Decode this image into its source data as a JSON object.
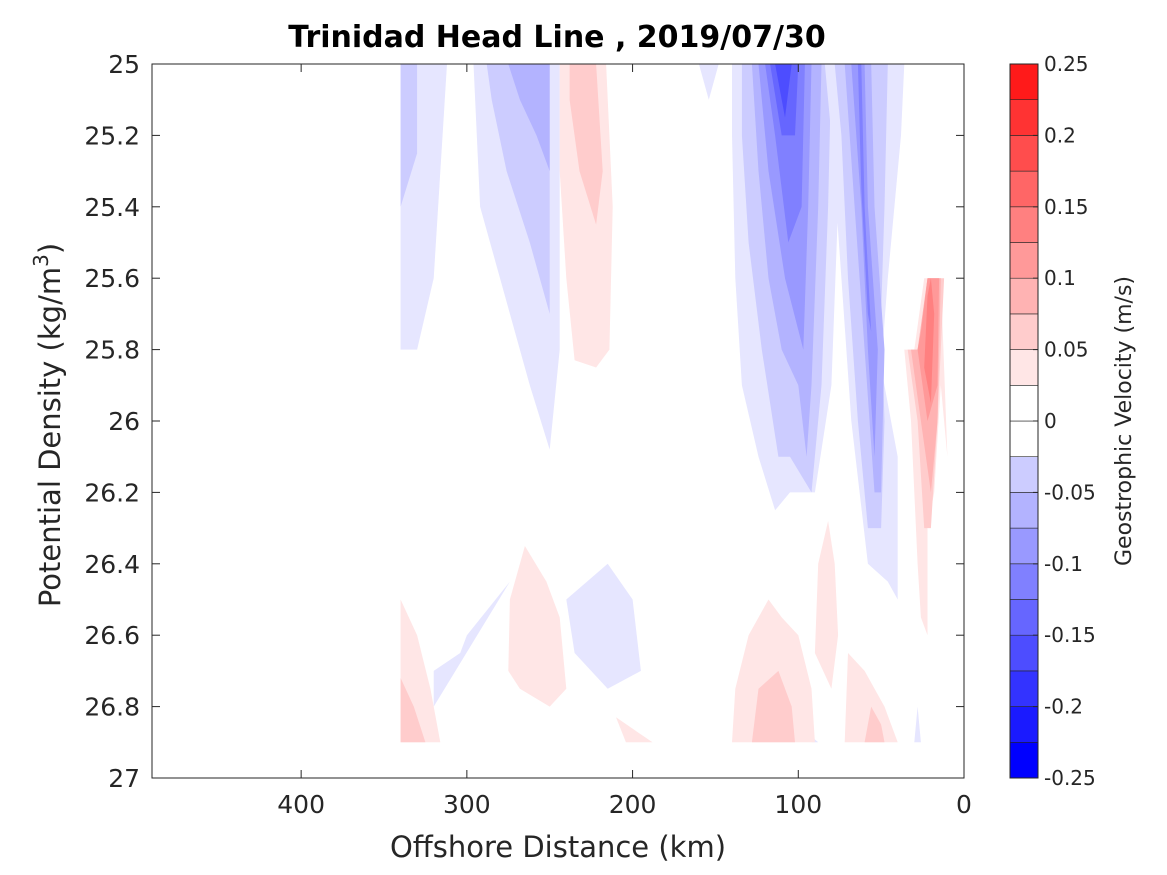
{
  "chart_data": {
    "type": "contour",
    "title": "Trinidad Head Line , 2019/07/30",
    "xlabel": "Offshore Distance (km)",
    "ylabel": "Potential Density (kg/m",
    "ylabel_sup": "3",
    "ylabel_close": ")",
    "colorbar_label": "Geostrophic Velocity (m/s)",
    "xlim": [
      490,
      0
    ],
    "ylim": [
      25,
      27
    ],
    "x_ticks": [
      400,
      300,
      200,
      100,
      0
    ],
    "x_tick_labels": [
      "400",
      "300",
      "200",
      "100",
      "0"
    ],
    "y_ticks": [
      25,
      25.2,
      25.4,
      25.6,
      25.8,
      26,
      26.2,
      26.4,
      26.6,
      26.8,
      27
    ],
    "y_tick_labels": [
      "25",
      "25.2",
      "25.4",
      "25.6",
      "25.8",
      "26",
      "26.2",
      "26.4",
      "26.6",
      "26.8",
      "27"
    ],
    "colorbar_range": [
      -0.25,
      0.25
    ],
    "colorbar_ticks": [
      0.25,
      0.2,
      0.15,
      0.1,
      0.05,
      0,
      -0.05,
      -0.1,
      -0.15,
      -0.2,
      -0.25
    ],
    "colorbar_tick_labels": [
      "0.25",
      "0.2",
      "0.15",
      "0.1",
      "0.05",
      "0",
      "-0.05",
      "-0.1",
      "-0.15",
      "-0.2",
      "-0.25"
    ],
    "levels": [
      -0.25,
      -0.225,
      -0.2,
      -0.175,
      -0.15,
      -0.125,
      -0.1,
      -0.075,
      -0.05,
      -0.025,
      0,
      0.025,
      0.05,
      0.075,
      0.1,
      0.125,
      0.15,
      0.175,
      0.2,
      0.225,
      0.25
    ],
    "level_colors": [
      "#0000ff",
      "#1a1aff",
      "#3333ff",
      "#4d4dff",
      "#6666ff",
      "#8080ff",
      "#9999ff",
      "#b3b3ff",
      "#ccccff",
      "#e6e6ff",
      "#ffffff",
      "#ffffff",
      "#ffe6e6",
      "#ffcccc",
      "#ffb3b3",
      "#ff9999",
      "#ff8080",
      "#ff6666",
      "#ff4d4d",
      "#ff3333",
      "#ff1a1a",
      "#ff0000"
    ],
    "regions": [
      {
        "v": -0.025,
        "pts": [
          [
            340,
            25
          ],
          [
            312,
            25
          ],
          [
            320,
            25.6
          ],
          [
            330,
            25.8
          ],
          [
            340,
            25.8
          ]
        ]
      },
      {
        "v": -0.05,
        "pts": [
          [
            340,
            25
          ],
          [
            330,
            25
          ],
          [
            330,
            25.25
          ],
          [
            340,
            25.4
          ]
        ]
      },
      {
        "v": -0.025,
        "pts": [
          [
            296,
            25
          ],
          [
            244,
            25
          ],
          [
            244,
            25.8
          ],
          [
            250,
            26.08
          ],
          [
            262,
            25.9
          ],
          [
            280,
            25.6
          ],
          [
            292,
            25.4
          ]
        ]
      },
      {
        "v": -0.05,
        "pts": [
          [
            288,
            25
          ],
          [
            250,
            25
          ],
          [
            250,
            25.7
          ],
          [
            262,
            25.5
          ],
          [
            276,
            25.3
          ],
          [
            285,
            25.1
          ]
        ]
      },
      {
        "v": -0.075,
        "pts": [
          [
            275,
            25
          ],
          [
            250,
            25
          ],
          [
            250,
            25.3
          ],
          [
            258,
            25.2
          ],
          [
            268,
            25.1
          ]
        ]
      },
      {
        "v": -0.025,
        "pts": [
          [
            160,
            25
          ],
          [
            148,
            25
          ],
          [
            154,
            25.1
          ]
        ]
      },
      {
        "v": -0.025,
        "pts": [
          [
            140,
            25
          ],
          [
            74,
            25
          ],
          [
            76,
            25.4
          ],
          [
            80,
            25.9
          ],
          [
            90,
            26.2
          ],
          [
            105,
            26.2
          ],
          [
            114,
            26.25
          ],
          [
            124,
            26.1
          ],
          [
            134,
            25.9
          ],
          [
            138,
            25.6
          ],
          [
            140,
            25.2
          ]
        ]
      },
      {
        "v": -0.05,
        "pts": [
          [
            134,
            25
          ],
          [
            80,
            25
          ],
          [
            82,
            25.4
          ],
          [
            86,
            25.9
          ],
          [
            92,
            26.2
          ],
          [
            105,
            26.1
          ],
          [
            112,
            26.1
          ],
          [
            122,
            25.8
          ],
          [
            130,
            25.5
          ],
          [
            134,
            25.2
          ]
        ]
      },
      {
        "v": -0.075,
        "pts": [
          [
            128,
            25
          ],
          [
            86,
            25
          ],
          [
            88,
            25.4
          ],
          [
            92,
            25.9
          ],
          [
            95,
            26.1
          ],
          [
            100,
            25.9
          ],
          [
            110,
            25.8
          ],
          [
            118,
            25.6
          ],
          [
            124,
            25.3
          ]
        ]
      },
      {
        "v": -0.1,
        "pts": [
          [
            124,
            25
          ],
          [
            92,
            25
          ],
          [
            94,
            25.4
          ],
          [
            97,
            25.8
          ],
          [
            108,
            25.6
          ],
          [
            118,
            25.3
          ]
        ]
      },
      {
        "v": -0.125,
        "pts": [
          [
            120,
            25
          ],
          [
            96,
            25
          ],
          [
            98,
            25.4
          ],
          [
            106,
            25.5
          ],
          [
            114,
            25.2
          ]
        ]
      },
      {
        "v": -0.15,
        "pts": [
          [
            117,
            25
          ],
          [
            100,
            25
          ],
          [
            102,
            25.2
          ],
          [
            110,
            25.2
          ]
        ]
      },
      {
        "v": -0.175,
        "pts": [
          [
            114,
            25
          ],
          [
            104,
            25
          ],
          [
            108,
            25.15
          ]
        ]
      },
      {
        "v": -0.025,
        "pts": [
          [
            84,
            25
          ],
          [
            36,
            25
          ],
          [
            38,
            25.2
          ],
          [
            46,
            25.6
          ],
          [
            50,
            25.85
          ],
          [
            40,
            26.1
          ],
          [
            40,
            26.5
          ],
          [
            46,
            26.45
          ],
          [
            58,
            26.4
          ],
          [
            68,
            26.0
          ],
          [
            74,
            25.6
          ],
          [
            80,
            25.2
          ]
        ]
      },
      {
        "v": -0.05,
        "pts": [
          [
            78,
            25
          ],
          [
            46,
            25
          ],
          [
            48,
            25.4
          ],
          [
            50,
            25.7
          ],
          [
            48,
            26.0
          ],
          [
            50,
            26.3
          ],
          [
            58,
            26.3
          ],
          [
            64,
            26.0
          ],
          [
            70,
            25.6
          ],
          [
            74,
            25.2
          ]
        ]
      },
      {
        "v": -0.075,
        "pts": [
          [
            72,
            25
          ],
          [
            56,
            25
          ],
          [
            54,
            25.4
          ],
          [
            48,
            25.8
          ],
          [
            50,
            26.2
          ],
          [
            54,
            26.2
          ],
          [
            60,
            25.8
          ],
          [
            66,
            25.4
          ]
        ]
      },
      {
        "v": -0.1,
        "pts": [
          [
            68,
            25
          ],
          [
            60,
            25
          ],
          [
            58,
            25.4
          ],
          [
            52,
            25.8
          ],
          [
            54,
            26.1
          ],
          [
            58,
            25.8
          ],
          [
            62,
            25.4
          ]
        ]
      },
      {
        "v": -0.125,
        "pts": [
          [
            64,
            25
          ],
          [
            62,
            25
          ],
          [
            60,
            25.4
          ],
          [
            56,
            25.75
          ],
          [
            58,
            25.7
          ],
          [
            62,
            25.35
          ]
        ]
      },
      {
        "v": -0.025,
        "pts": [
          [
            28,
            26.8
          ],
          [
            26,
            26.9
          ],
          [
            30,
            26.9
          ]
        ]
      },
      {
        "v": -0.025,
        "pts": [
          [
            274,
            26.45
          ],
          [
            300,
            26.6
          ],
          [
            304,
            26.65
          ],
          [
            320,
            26.7
          ],
          [
            320,
            26.8
          ]
        ]
      },
      {
        "v": -0.025,
        "pts": [
          [
            215,
            26.4
          ],
          [
            200,
            26.5
          ],
          [
            195,
            26.7
          ],
          [
            215,
            26.75
          ],
          [
            235,
            26.65
          ],
          [
            240,
            26.5
          ]
        ]
      },
      {
        "v": -0.025,
        "pts": [
          [
            93,
            26.88
          ],
          [
            88,
            26.9
          ],
          [
            92,
            26.9
          ]
        ]
      },
      {
        "v": 0.025,
        "pts": [
          [
            244,
            25
          ],
          [
            216,
            25
          ],
          [
            212,
            25.4
          ],
          [
            214,
            25.8
          ],
          [
            222,
            25.85
          ],
          [
            235,
            25.83
          ],
          [
            240,
            25.6
          ],
          [
            244,
            25.3
          ]
        ]
      },
      {
        "v": 0.05,
        "pts": [
          [
            238,
            25
          ],
          [
            222,
            25
          ],
          [
            218,
            25.3
          ],
          [
            222,
            25.45
          ],
          [
            232,
            25.3
          ],
          [
            238,
            25.1
          ]
        ]
      },
      {
        "v": 0.025,
        "pts": [
          [
            340,
            26.5
          ],
          [
            340,
            26.9
          ],
          [
            316,
            26.9
          ],
          [
            322,
            26.75
          ],
          [
            330,
            26.6
          ]
        ]
      },
      {
        "v": 0.05,
        "pts": [
          [
            340,
            26.72
          ],
          [
            340,
            26.9
          ],
          [
            325,
            26.9
          ],
          [
            332,
            26.8
          ]
        ]
      },
      {
        "v": 0.025,
        "pts": [
          [
            265,
            26.35
          ],
          [
            252,
            26.45
          ],
          [
            244,
            26.55
          ],
          [
            240,
            26.75
          ],
          [
            250,
            26.8
          ],
          [
            268,
            26.75
          ],
          [
            275,
            26.7
          ],
          [
            274,
            26.5
          ]
        ]
      },
      {
        "v": 0.025,
        "pts": [
          [
            210,
            26.83
          ],
          [
            188,
            26.9
          ],
          [
            204,
            26.9
          ]
        ]
      },
      {
        "v": 0.025,
        "pts": [
          [
            118,
            26.5
          ],
          [
            130,
            26.6
          ],
          [
            138,
            26.75
          ],
          [
            140,
            26.9
          ],
          [
            90,
            26.9
          ],
          [
            92,
            26.75
          ],
          [
            100,
            26.6
          ],
          [
            110,
            26.55
          ]
        ]
      },
      {
        "v": 0.05,
        "pts": [
          [
            112,
            26.7
          ],
          [
            124,
            26.75
          ],
          [
            128,
            26.9
          ],
          [
            102,
            26.9
          ],
          [
            104,
            26.8
          ]
        ]
      },
      {
        "v": 0.025,
        "pts": [
          [
            82,
            26.28
          ],
          [
            78,
            26.4
          ],
          [
            76,
            26.6
          ],
          [
            80,
            26.75
          ],
          [
            90,
            26.65
          ],
          [
            88,
            26.4
          ]
        ]
      },
      {
        "v": 0.025,
        "pts": [
          [
            70,
            26.65
          ],
          [
            72,
            26.9
          ],
          [
            40,
            26.9
          ],
          [
            48,
            26.8
          ],
          [
            60,
            26.7
          ]
        ]
      },
      {
        "v": 0.05,
        "pts": [
          [
            56,
            26.8
          ],
          [
            60,
            26.9
          ],
          [
            48,
            26.9
          ],
          [
            50,
            26.85
          ]
        ]
      },
      {
        "v": 0.025,
        "pts": [
          [
            36,
            25.8
          ],
          [
            32,
            26.0
          ],
          [
            30,
            26.2
          ],
          [
            28,
            26.4
          ],
          [
            26,
            26.55
          ],
          [
            22,
            26.6
          ],
          [
            22,
            26.3
          ],
          [
            18,
            26.2
          ],
          [
            14,
            25.9
          ],
          [
            10,
            26.1
          ],
          [
            14,
            25.6
          ],
          [
            24,
            25.6
          ],
          [
            30,
            25.8
          ]
        ]
      },
      {
        "v": 0.05,
        "pts": [
          [
            34,
            25.8
          ],
          [
            28,
            26.0
          ],
          [
            24,
            26.3
          ],
          [
            20,
            26.3
          ],
          [
            16,
            26.0
          ],
          [
            12,
            25.6
          ],
          [
            22,
            25.6
          ],
          [
            28,
            25.8
          ]
        ]
      },
      {
        "v": 0.075,
        "pts": [
          [
            32,
            25.8
          ],
          [
            26,
            26.0
          ],
          [
            20,
            26.2
          ],
          [
            16,
            26.0
          ],
          [
            14,
            25.6
          ],
          [
            22,
            25.6
          ],
          [
            28,
            25.8
          ]
        ]
      },
      {
        "v": 0.1,
        "pts": [
          [
            28,
            25.8
          ],
          [
            22,
            26.0
          ],
          [
            16,
            25.9
          ],
          [
            15,
            25.6
          ],
          [
            22,
            25.6
          ],
          [
            26,
            25.75
          ]
        ]
      },
      {
        "v": 0.125,
        "pts": [
          [
            24,
            25.85
          ],
          [
            20,
            25.95
          ],
          [
            18,
            25.7
          ],
          [
            20,
            25.6
          ],
          [
            22,
            25.65
          ]
        ]
      }
    ]
  }
}
